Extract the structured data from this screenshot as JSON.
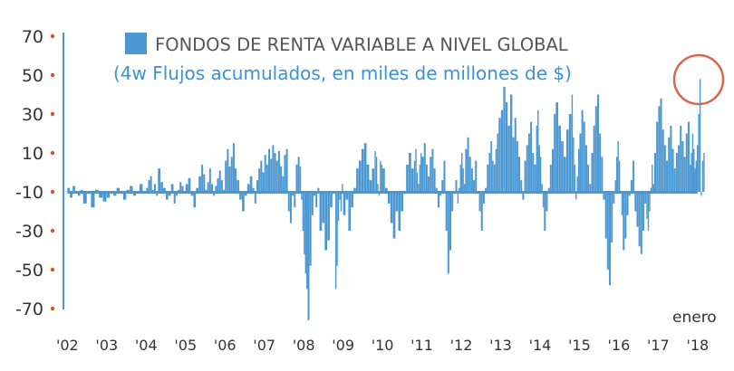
{
  "chart_data": {
    "type": "bar",
    "title": "FONDOS DE RENTA VARIABLE A NIVEL GLOBAL",
    "subtitle": "(4w Flujos acumulados, en miles de millones de $)",
    "annotation": "enero",
    "ylim": [
      -75,
      75
    ],
    "y_ticks": [
      "70",
      "50",
      "30",
      "10",
      "-10",
      "-30",
      "-50",
      "-70"
    ],
    "y_tick_values": [
      70,
      50,
      30,
      10,
      -10,
      -30,
      -50,
      -70
    ],
    "x_tick_labels": [
      "'02",
      "'03",
      "'04",
      "'05",
      "'06",
      "'07",
      "'08",
      "'09",
      "'10",
      "'11",
      "'12",
      "'13",
      "'14",
      "'15",
      "'16",
      "'17",
      "'18"
    ],
    "x_tick_years": [
      2002,
      2003,
      2004,
      2005,
      2006,
      2007,
      2008,
      2009,
      2010,
      2011,
      2012,
      2013,
      2014,
      2015,
      2016,
      2017,
      2018
    ],
    "x_range": [
      2001.9,
      2018.05
    ],
    "baseline": -10,
    "colors": {
      "bars": "#4a97d2",
      "tick_dot": "#d9532c",
      "circle": "#d9674f"
    },
    "series": [
      {
        "yearly_points": [
          {
            "x": 2002.0,
            "values": [
              -8,
              -13,
              -7,
              -10,
              -12,
              -9
            ]
          },
          {
            "x": 2002.4,
            "values": [
              -16,
              -11,
              -18,
              -9,
              -13,
              -15
            ]
          },
          {
            "x": 2003.0,
            "values": [
              -13,
              -10,
              -12,
              -8,
              -11,
              -14
            ]
          },
          {
            "x": 2003.5,
            "values": [
              -9,
              -7,
              -12,
              -10,
              -6,
              -11
            ]
          },
          {
            "x": 2004.0,
            "values": [
              -8,
              -4,
              -2,
              -9,
              -6,
              -12
            ]
          },
          {
            "x": 2004.3,
            "values": [
              2,
              -5,
              -8,
              -14,
              -12,
              -6
            ]
          },
          {
            "x": 2004.7,
            "values": [
              -16,
              -12,
              -9,
              -5,
              -7,
              -11
            ]
          },
          {
            "x": 2005.0,
            "values": [
              -6,
              -3,
              -12,
              -18,
              -8,
              -2
            ]
          },
          {
            "x": 2005.4,
            "values": [
              4,
              -1,
              -9,
              -5,
              2,
              -6
            ]
          },
          {
            "x": 2005.7,
            "values": [
              -12,
              -7,
              -3,
              1,
              -4,
              -9
            ]
          },
          {
            "x": 2006.0,
            "values": [
              6,
              12,
              3,
              8,
              15,
              2
            ]
          },
          {
            "x": 2006.3,
            "values": [
              -4,
              -14,
              -20,
              -12,
              -6,
              -2
            ]
          },
          {
            "x": 2006.7,
            "values": [
              -8,
              -16,
              -4,
              2,
              6,
              0
            ]
          },
          {
            "x": 2007.0,
            "values": [
              9,
              4,
              12,
              7,
              14,
              10
            ]
          },
          {
            "x": 2007.3,
            "values": [
              6,
              11,
              3,
              -2,
              9,
              12
            ]
          },
          {
            "x": 2007.6,
            "values": [
              -20,
              -26,
              -12,
              -18,
              4,
              8
            ]
          },
          {
            "x": 2007.9,
            "values": [
              3,
              -14,
              -30,
              -42,
              -52,
              -60
            ]
          },
          {
            "x": 2008.1,
            "values": [
              -76,
              -48,
              -22,
              -12,
              -18,
              -8
            ]
          },
          {
            "x": 2008.4,
            "values": [
              -30,
              -26,
              -40,
              -35,
              -18,
              -10
            ]
          },
          {
            "x": 2008.8,
            "values": [
              -60,
              -48,
              -25,
              -14,
              -20,
              -6
            ]
          },
          {
            "x": 2009.0,
            "values": [
              -22,
              -14,
              -30,
              -18,
              -8,
              2
            ]
          },
          {
            "x": 2009.4,
            "values": [
              6,
              12,
              15,
              4,
              -4,
              2
            ]
          },
          {
            "x": 2009.8,
            "values": [
              11,
              8,
              -6,
              -12,
              6,
              4
            ]
          },
          {
            "x": 2010.0,
            "values": [
              2,
              -8,
              -16,
              -26,
              -34,
              -20
            ]
          },
          {
            "x": 2010.4,
            "values": [
              -30,
              -20,
              -10,
              4,
              10,
              2
            ]
          },
          {
            "x": 2010.8,
            "values": [
              6,
              12,
              0,
              -6,
              4,
              10
            ]
          },
          {
            "x": 2011.0,
            "values": [
              8,
              15,
              4,
              -2,
              8,
              12
            ]
          },
          {
            "x": 2011.3,
            "values": [
              2,
              -8,
              -18,
              -12,
              -4,
              6
            ]
          },
          {
            "x": 2011.6,
            "values": [
              -30,
              -52,
              -40,
              -20,
              -10,
              -4
            ]
          },
          {
            "x": 2011.9,
            "values": [
              -16,
              -8,
              4,
              10,
              2,
              -6
            ]
          },
          {
            "x": 2012.1,
            "values": [
              12,
              18,
              8,
              2,
              -4,
              6
            ]
          },
          {
            "x": 2012.4,
            "values": [
              -10,
              -20,
              -30,
              -16,
              -8,
              4
            ]
          },
          {
            "x": 2012.7,
            "values": [
              10,
              16,
              6,
              4,
              12,
              20
            ]
          },
          {
            "x": 2012.95,
            "values": [
              28,
              32,
              44,
              36,
              24,
              40
            ]
          },
          {
            "x": 2013.3,
            "values": [
              18,
              28,
              16,
              8,
              -4,
              -14
            ]
          },
          {
            "x": 2013.6,
            "values": [
              6,
              14,
              20,
              26,
              10,
              4
            ]
          },
          {
            "x": 2013.9,
            "values": [
              24,
              32,
              14,
              8,
              -6,
              -18
            ]
          },
          {
            "x": 2014.1,
            "values": [
              -30,
              -20,
              -8,
              4,
              12,
              30
            ]
          },
          {
            "x": 2014.4,
            "values": [
              36,
              24,
              16,
              8,
              22,
              30
            ]
          },
          {
            "x": 2014.8,
            "values": [
              40,
              18,
              4,
              -14,
              -2,
              12
            ]
          },
          {
            "x": 2015.0,
            "values": [
              20,
              32,
              26,
              14,
              4,
              -6
            ]
          },
          {
            "x": 2015.3,
            "values": [
              10,
              24,
              34,
              40,
              20,
              8
            ]
          },
          {
            "x": 2015.6,
            "values": [
              -14,
              -34,
              -50,
              -58,
              -36,
              -16
            ]
          },
          {
            "x": 2015.9,
            "values": [
              -4,
              8,
              16,
              6,
              -10,
              -22
            ]
          },
          {
            "x": 2016.1,
            "values": [
              -40,
              -34,
              -22,
              -12,
              -4,
              6
            ]
          },
          {
            "x": 2016.4,
            "values": [
              -20,
              -28,
              -38,
              -42,
              -30,
              -16
            ]
          },
          {
            "x": 2016.7,
            "values": [
              -24,
              -30,
              -20,
              -8,
              4,
              -6
            ]
          },
          {
            "x": 2016.9,
            "values": [
              10,
              26,
              34,
              38,
              22,
              14
            ]
          },
          {
            "x": 2017.2,
            "values": [
              6,
              18,
              24,
              12,
              2,
              10
            ]
          },
          {
            "x": 2017.5,
            "values": [
              14,
              24,
              16,
              8,
              20,
              26
            ]
          },
          {
            "x": 2017.8,
            "values": [
              4,
              10,
              20,
              12,
              2,
              6
            ]
          },
          {
            "x": 2017.98,
            "values": [
              14,
              30,
              48,
              -12,
              6,
              10
            ]
          }
        ]
      }
    ]
  }
}
